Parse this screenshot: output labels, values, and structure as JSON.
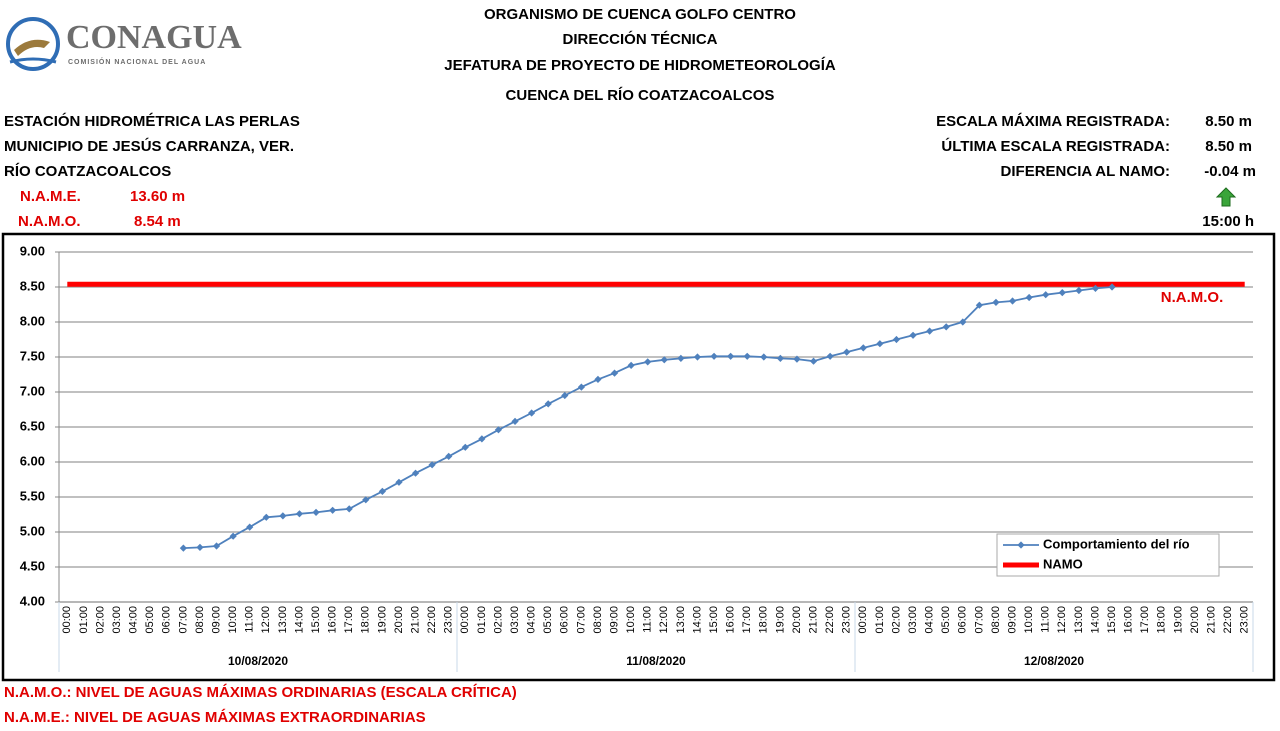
{
  "header": {
    "logo": "CONAGUA",
    "logo_sub": "COMISIÓN NACIONAL DEL AGUA",
    "titles": [
      "ORGANISMO DE CUENCA GOLFO CENTRO",
      "DIRECCIÓN TÉCNICA",
      "JEFATURA DE PROYECTO DE HIDROMETEOROLOGÍA",
      "CUENCA DEL RÍO COATZACOALCOS"
    ],
    "left": [
      "ESTACIÓN HIDROMÉTRICA LAS PERLAS",
      "MUNICIPIO DE JESÚS CARRANZA, VER.",
      "RÍO COATZACOALCOS"
    ],
    "name_label": "N.A.M.E.",
    "name_value": "13.60 m",
    "namo_label": "N.A.M.O.",
    "namo_value": "8.54 m",
    "right": [
      {
        "label": "ESCALA MÁXIMA REGISTRADA:",
        "value": "8.50 m"
      },
      {
        "label": "ÚLTIMA ESCALA REGISTRADA:",
        "value": "8.50 m"
      },
      {
        "label": "DIFERENCIA AL NAMO:",
        "value": "-0.04 m"
      }
    ],
    "time": "15:00 h"
  },
  "chart_data": {
    "type": "line",
    "categories": [
      "00:00",
      "01:00",
      "02:00",
      "03:00",
      "04:00",
      "05:00",
      "06:00",
      "07:00",
      "08:00",
      "09:00",
      "10:00",
      "11:00",
      "12:00",
      "13:00",
      "14:00",
      "15:00",
      "16:00",
      "17:00",
      "18:00",
      "19:00",
      "20:00",
      "21:00",
      "22:00",
      "23:00",
      "00:00",
      "01:00",
      "02:00",
      "03:00",
      "04:00",
      "05:00",
      "06:00",
      "07:00",
      "08:00",
      "09:00",
      "10:00",
      "11:00",
      "12:00",
      "13:00",
      "14:00",
      "15:00",
      "16:00",
      "17:00",
      "18:00",
      "19:00",
      "20:00",
      "21:00",
      "22:00",
      "23:00",
      "00:00",
      "01:00",
      "02:00",
      "03:00",
      "04:00",
      "05:00",
      "06:00",
      "07:00",
      "08:00",
      "09:00",
      "10:00",
      "11:00",
      "12:00",
      "13:00",
      "14:00",
      "15:00",
      "16:00",
      "17:00",
      "18:00",
      "19:00",
      "20:00",
      "21:00",
      "22:00",
      "23:00"
    ],
    "x_groups": [
      "10/08/2020",
      "11/08/2020",
      "12/08/2020"
    ],
    "series": [
      {
        "name": "Comportamiento del río",
        "color": "#4f81bd",
        "values": [
          null,
          null,
          null,
          null,
          null,
          null,
          null,
          4.77,
          4.78,
          4.8,
          4.94,
          5.07,
          5.21,
          5.23,
          5.26,
          5.28,
          5.31,
          5.33,
          5.46,
          5.58,
          5.71,
          5.84,
          5.96,
          6.08,
          6.21,
          6.33,
          6.46,
          6.58,
          6.7,
          6.83,
          6.95,
          7.07,
          7.18,
          7.27,
          7.38,
          7.43,
          7.46,
          7.48,
          7.5,
          7.51,
          7.51,
          7.51,
          7.5,
          7.48,
          7.47,
          7.44,
          7.51,
          7.57,
          7.63,
          7.69,
          7.75,
          7.81,
          7.87,
          7.93,
          8.0,
          8.24,
          8.28,
          8.3,
          8.35,
          8.39,
          8.42,
          8.45,
          8.48,
          8.5,
          null,
          null,
          null,
          null,
          null,
          null,
          null,
          null
        ]
      },
      {
        "name": "NAMO",
        "color": "#ff0000",
        "values": [
          8.54,
          8.54,
          8.54,
          8.54,
          8.54,
          8.54,
          8.54,
          8.54,
          8.54,
          8.54,
          8.54,
          8.54,
          8.54,
          8.54,
          8.54,
          8.54,
          8.54,
          8.54,
          8.54,
          8.54,
          8.54,
          8.54,
          8.54,
          8.54,
          8.54,
          8.54,
          8.54,
          8.54,
          8.54,
          8.54,
          8.54,
          8.54,
          8.54,
          8.54,
          8.54,
          8.54,
          8.54,
          8.54,
          8.54,
          8.54,
          8.54,
          8.54,
          8.54,
          8.54,
          8.54,
          8.54,
          8.54,
          8.54,
          8.54,
          8.54,
          8.54,
          8.54,
          8.54,
          8.54,
          8.54,
          8.54,
          8.54,
          8.54,
          8.54,
          8.54,
          8.54,
          8.54,
          8.54,
          8.54,
          8.54,
          8.54,
          8.54,
          8.54,
          8.54,
          8.54,
          8.54,
          8.54
        ]
      }
    ],
    "annotation": "N.A.M.O.",
    "ylim": [
      4,
      9
    ],
    "yticks": [
      {
        "value": 4,
        "label": "4.00"
      },
      {
        "value": 4.5,
        "label": "4.50"
      },
      {
        "value": 5,
        "label": "5.00"
      },
      {
        "value": 5.5,
        "label": "5.50"
      },
      {
        "value": 6,
        "label": "6.00"
      },
      {
        "value": 6.5,
        "label": "6.50"
      },
      {
        "value": 7,
        "label": "7.00"
      },
      {
        "value": 7.5,
        "label": "7.50"
      },
      {
        "value": 8,
        "label": "8.00"
      },
      {
        "value": 8.5,
        "label": "8.50"
      },
      {
        "value": 9,
        "label": "9.00"
      }
    ],
    "grid": true,
    "legend": "bottom-right"
  },
  "footer": [
    "N.A.M.O.: NIVEL DE AGUAS MÁXIMAS ORDINARIAS (ESCALA CRÍTICA)",
    "N.A.M.E.: NIVEL DE AGUAS MÁXIMAS EXTRAORDINARIAS"
  ]
}
